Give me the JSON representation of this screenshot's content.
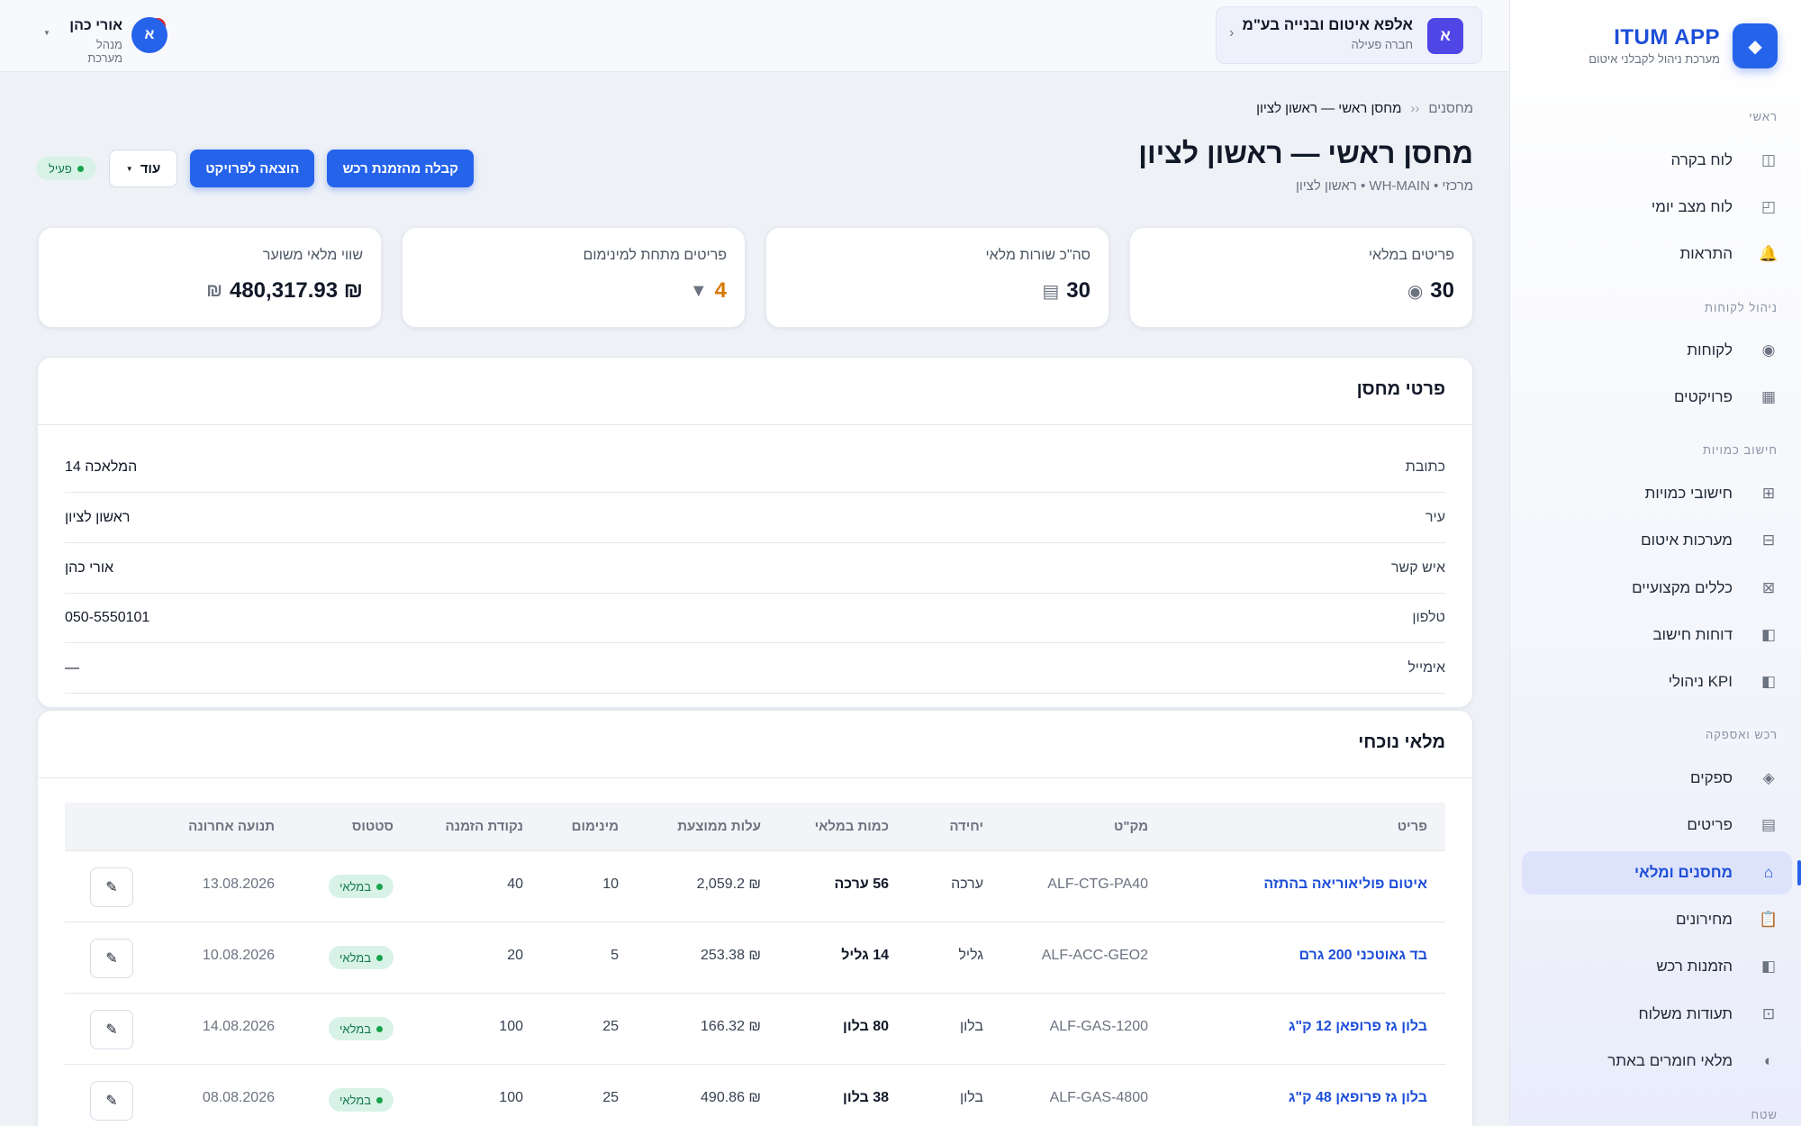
{
  "brand": {
    "logo_icon": "diamond-icon",
    "name": "ITUM APP",
    "subtitle": "מערכת ניהול לקבלני איטום"
  },
  "sidebar": {
    "sections": [
      {
        "title": "ראשי"
      },
      {
        "title": "ניהול לקוחות"
      },
      {
        "title": "חישוב כמויות"
      },
      {
        "title": "רכש ואספקה"
      },
      {
        "title": "שטח"
      }
    ],
    "items": [
      {
        "label": "לוח בקרה",
        "icon": "dashboard-icon"
      },
      {
        "label": "לוח מצב יומי",
        "icon": "daily-board-icon"
      },
      {
        "label": "התראות",
        "icon": "bell-icon"
      },
      {
        "label": "לקוחות",
        "icon": "customers-icon"
      },
      {
        "label": "פרויקטים",
        "icon": "projects-icon"
      },
      {
        "label": "חישובי כמויות",
        "icon": "grid-icon"
      },
      {
        "label": "מערכות איטום",
        "icon": "systems-icon"
      },
      {
        "label": "כללים מקצועיים",
        "icon": "rules-icon"
      },
      {
        "label": "דוחות חישוב",
        "icon": "reports-icon"
      },
      {
        "label": "KPI ניהולי",
        "icon": "kpi-icon"
      },
      {
        "label": "ספקים",
        "icon": "suppliers-icon"
      },
      {
        "label": "פריטים",
        "icon": "items-icon"
      },
      {
        "label": "מחסנים ומלאי",
        "icon": "warehouse-icon"
      },
      {
        "label": "מחירונים",
        "icon": "clipboard-icon"
      },
      {
        "label": "הזמנות רכש",
        "icon": "purchase-orders-icon"
      },
      {
        "label": "תעודות משלוח",
        "icon": "delivery-icon"
      },
      {
        "label": "מלאי חומרים באתר",
        "icon": "site-stock-icon"
      }
    ]
  },
  "topbar": {
    "company": {
      "avatar": "א",
      "name": "אלפא איטום ובנייה בע\"מ",
      "subtitle": "חברה פעילה"
    },
    "notifications": {
      "count": "5"
    },
    "user": {
      "avatar": "א",
      "name": "אורי כהן",
      "role": "מנהל מערכת"
    }
  },
  "page": {
    "breadcrumb": {
      "parent": "מחסנים",
      "separator": "‹‹",
      "current": "מחסן ראשי — ראשון לציון"
    },
    "title": "מחסן ראשי — ראשון לציון",
    "subtitle": "מרכזי • WH-MAIN • ראשון לציון",
    "actions": {
      "receive": "קבלה מהזמנת רכש",
      "issue": "הוצאה לפרויקט",
      "more": "עוד",
      "status": "פעיל"
    }
  },
  "stats": [
    {
      "label": "פריטים במלאי",
      "value": "30",
      "icon": "target-icon"
    },
    {
      "label": "סה\"כ שורות מלאי",
      "value": "30",
      "icon": "list-icon"
    },
    {
      "label": "פריטים מתחת למינימום",
      "value": "4",
      "icon": "warning-triangle-icon"
    },
    {
      "label": "שווי מלאי משוער",
      "value": "₪ 480,317.93",
      "icon": "shekel-icon"
    }
  ],
  "details": {
    "title": "פרטי מחסן",
    "rows": [
      {
        "label": "כתובת",
        "value": "המלאכה 14"
      },
      {
        "label": "עיר",
        "value": "ראשון לציון"
      },
      {
        "label": "איש קשר",
        "value": "אורי כהן"
      },
      {
        "label": "טלפון",
        "value": "050-5550101"
      },
      {
        "label": "אימייל",
        "value": "—"
      }
    ]
  },
  "inventory": {
    "title": "מלאי נוכחי",
    "columns": [
      "פריט",
      "מק\"ט",
      "יחידה",
      "כמות במלאי",
      "עלות ממוצעת",
      "מינימום",
      "נקודת הזמנה",
      "סטטוס",
      "תנועה אחרונה"
    ],
    "rows": [
      {
        "item": "איטום פוליאוריאה בהתזה",
        "sku": "ALF-CTG-PA40",
        "unit": "ערכה",
        "qty": "56 ערכה",
        "cost": "₪ 2,059.2",
        "min": "10",
        "reorder": "40",
        "status": "במלאי",
        "last": "13.08.2026"
      },
      {
        "item": "בד גאוטכני 200 גרם",
        "sku": "ALF-ACC-GEO2",
        "unit": "גליל",
        "qty": "14 גליל",
        "cost": "₪ 253.38",
        "min": "5",
        "reorder": "20",
        "status": "במלאי",
        "last": "10.08.2026"
      },
      {
        "item": "בלון גז פרופאן 12 ק\"ג",
        "sku": "ALF-GAS-1200",
        "unit": "בלון",
        "qty": "80 בלון",
        "cost": "₪ 166.32",
        "min": "25",
        "reorder": "100",
        "status": "במלאי",
        "last": "14.08.2026"
      },
      {
        "item": "בלון גז פרופאן 48 ק\"ג",
        "sku": "ALF-GAS-4800",
        "unit": "בלון",
        "qty": "38 בלון",
        "cost": "₪ 490.86",
        "min": "25",
        "reorder": "100",
        "status": "במלאי",
        "last": "08.08.2026"
      }
    ]
  }
}
